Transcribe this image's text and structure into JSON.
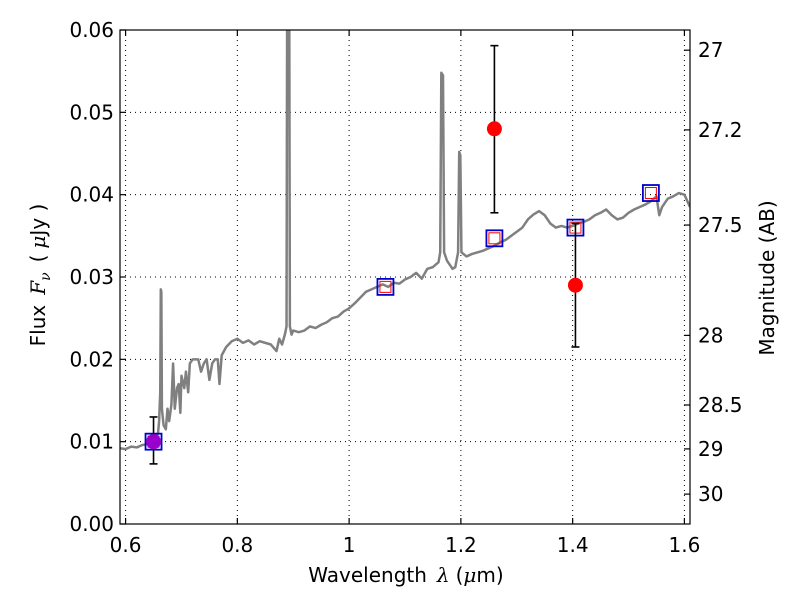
{
  "chart_data": {
    "type": "scatter",
    "xlabel_text": "Wavelength",
    "xlabel_symbol": "λ",
    "xlabel_unit_open": "(",
    "xlabel_unit_mu": "μ",
    "xlabel_unit_rest": "m)",
    "ylabel_text": "Flux",
    "ylabel_symbol": "F",
    "ylabel_sub": "ν",
    "ylabel_unit_open": "(",
    "ylabel_unit_mu": "μ",
    "ylabel_unit_rest": "Jy )",
    "y2label": "Magnitude (AB)",
    "xlim": [
      0.59,
      1.61
    ],
    "ylim": [
      0.0,
      0.06
    ],
    "x_ticks": [
      0.6,
      0.8,
      1.0,
      1.2,
      1.4,
      1.6
    ],
    "x_tick_labels": [
      "0.6",
      "0.8",
      "1",
      "1.2",
      "1.4",
      "1.6"
    ],
    "y_ticks": [
      0.0,
      0.01,
      0.02,
      0.03,
      0.04,
      0.05,
      0.06
    ],
    "y_tick_labels": [
      "0.00",
      "0.01",
      "0.02",
      "0.03",
      "0.04",
      "0.05",
      "0.06"
    ],
    "mag_ticks": [
      27.0,
      27.2,
      27.5,
      28.0,
      28.5,
      29.0,
      30.0
    ],
    "mag_tick_labels": [
      "27",
      "27.2",
      "27.5",
      "28",
      "28.5",
      "29",
      "30"
    ],
    "grid": true,
    "colors": {
      "spectrum": "#808080",
      "observed": "#ff0000",
      "model": "#0000cc",
      "model_inner": "#ff0000",
      "errorbar": "#000000",
      "purple_point": "#9900cc"
    },
    "spectrum": [
      [
        0.59,
        0.0092
      ],
      [
        0.6,
        0.0091
      ],
      [
        0.61,
        0.0094
      ],
      [
        0.62,
        0.0093
      ],
      [
        0.63,
        0.0096
      ],
      [
        0.64,
        0.0097
      ],
      [
        0.645,
        0.0101
      ],
      [
        0.65,
        0.0099
      ],
      [
        0.655,
        0.0105
      ],
      [
        0.658,
        0.011
      ],
      [
        0.66,
        0.0125
      ],
      [
        0.662,
        0.016
      ],
      [
        0.663,
        0.0285
      ],
      [
        0.664,
        0.0282
      ],
      [
        0.665,
        0.014
      ],
      [
        0.668,
        0.012
      ],
      [
        0.672,
        0.0115
      ],
      [
        0.675,
        0.014
      ],
      [
        0.678,
        0.0125
      ],
      [
        0.682,
        0.0145
      ],
      [
        0.685,
        0.0195
      ],
      [
        0.688,
        0.014
      ],
      [
        0.692,
        0.0165
      ],
      [
        0.695,
        0.017
      ],
      [
        0.698,
        0.0135
      ],
      [
        0.7,
        0.018
      ],
      [
        0.705,
        0.0165
      ],
      [
        0.708,
        0.0185
      ],
      [
        0.712,
        0.016
      ],
      [
        0.715,
        0.0195
      ],
      [
        0.72,
        0.02
      ],
      [
        0.73,
        0.02
      ],
      [
        0.735,
        0.0185
      ],
      [
        0.74,
        0.0195
      ],
      [
        0.745,
        0.02
      ],
      [
        0.75,
        0.0175
      ],
      [
        0.755,
        0.0195
      ],
      [
        0.76,
        0.02
      ],
      [
        0.765,
        0.02
      ],
      [
        0.768,
        0.017
      ],
      [
        0.772,
        0.0205
      ],
      [
        0.78,
        0.0215
      ],
      [
        0.79,
        0.0222
      ],
      [
        0.8,
        0.0225
      ],
      [
        0.81,
        0.022
      ],
      [
        0.82,
        0.0223
      ],
      [
        0.83,
        0.0218
      ],
      [
        0.84,
        0.0222
      ],
      [
        0.85,
        0.022
      ],
      [
        0.86,
        0.0218
      ],
      [
        0.87,
        0.021
      ],
      [
        0.875,
        0.0225
      ],
      [
        0.88,
        0.0218
      ],
      [
        0.885,
        0.023
      ],
      [
        0.888,
        0.024
      ],
      [
        0.889,
        0.06
      ],
      [
        0.893,
        0.06
      ],
      [
        0.894,
        0.024
      ],
      [
        0.897,
        0.023
      ],
      [
        0.9,
        0.0235
      ],
      [
        0.91,
        0.0233
      ],
      [
        0.92,
        0.0235
      ],
      [
        0.93,
        0.024
      ],
      [
        0.94,
        0.0238
      ],
      [
        0.95,
        0.0242
      ],
      [
        0.96,
        0.0245
      ],
      [
        0.97,
        0.025
      ],
      [
        0.98,
        0.0252
      ],
      [
        0.99,
        0.0258
      ],
      [
        1.0,
        0.0262
      ],
      [
        1.01,
        0.0268
      ],
      [
        1.02,
        0.0275
      ],
      [
        1.03,
        0.0282
      ],
      [
        1.04,
        0.0285
      ],
      [
        1.05,
        0.0288
      ],
      [
        1.06,
        0.0291
      ],
      [
        1.07,
        0.0288
      ],
      [
        1.08,
        0.0293
      ],
      [
        1.09,
        0.0292
      ],
      [
        1.1,
        0.0297
      ],
      [
        1.11,
        0.03
      ],
      [
        1.12,
        0.0305
      ],
      [
        1.13,
        0.0298
      ],
      [
        1.14,
        0.031
      ],
      [
        1.15,
        0.0312
      ],
      [
        1.16,
        0.0318
      ],
      [
        1.163,
        0.033
      ],
      [
        1.165,
        0.0548
      ],
      [
        1.168,
        0.0545
      ],
      [
        1.17,
        0.033
      ],
      [
        1.175,
        0.032
      ],
      [
        1.18,
        0.0315
      ],
      [
        1.185,
        0.031
      ],
      [
        1.19,
        0.0312
      ],
      [
        1.195,
        0.033
      ],
      [
        1.197,
        0.0452
      ],
      [
        1.199,
        0.0448
      ],
      [
        1.201,
        0.033
      ],
      [
        1.21,
        0.0325
      ],
      [
        1.22,
        0.0328
      ],
      [
        1.23,
        0.033
      ],
      [
        1.24,
        0.0332
      ],
      [
        1.25,
        0.0335
      ],
      [
        1.26,
        0.0338
      ],
      [
        1.27,
        0.0342
      ],
      [
        1.28,
        0.0345
      ],
      [
        1.29,
        0.035
      ],
      [
        1.3,
        0.0355
      ],
      [
        1.31,
        0.036
      ],
      [
        1.32,
        0.037
      ],
      [
        1.33,
        0.0376
      ],
      [
        1.34,
        0.038
      ],
      [
        1.35,
        0.0375
      ],
      [
        1.36,
        0.0365
      ],
      [
        1.37,
        0.036
      ],
      [
        1.38,
        0.0362
      ],
      [
        1.39,
        0.036
      ],
      [
        1.4,
        0.0362
      ],
      [
        1.41,
        0.0365
      ],
      [
        1.42,
        0.0367
      ],
      [
        1.43,
        0.037
      ],
      [
        1.44,
        0.0375
      ],
      [
        1.45,
        0.0378
      ],
      [
        1.46,
        0.0382
      ],
      [
        1.47,
        0.0375
      ],
      [
        1.48,
        0.037
      ],
      [
        1.49,
        0.0372
      ],
      [
        1.5,
        0.0378
      ],
      [
        1.51,
        0.0382
      ],
      [
        1.52,
        0.0385
      ],
      [
        1.53,
        0.0388
      ],
      [
        1.54,
        0.0392
      ],
      [
        1.55,
        0.0398
      ],
      [
        1.555,
        0.0375
      ],
      [
        1.56,
        0.0385
      ],
      [
        1.57,
        0.0395
      ],
      [
        1.58,
        0.0398
      ],
      [
        1.59,
        0.0402
      ],
      [
        1.6,
        0.04
      ],
      [
        1.61,
        0.0385
      ]
    ],
    "observed_points": [
      {
        "x": 0.65,
        "y": 0.01,
        "yerr_low": 0.0073,
        "yerr_high": 0.013
      },
      {
        "x": 1.26,
        "y": 0.048,
        "yerr_low": 0.0378,
        "yerr_high": 0.0581
      },
      {
        "x": 1.405,
        "y": 0.029,
        "yerr_low": 0.0215,
        "yerr_high": 0.0365
      }
    ],
    "model_points": [
      {
        "x": 0.65,
        "y": 0.01
      },
      {
        "x": 1.065,
        "y": 0.0288
      },
      {
        "x": 1.26,
        "y": 0.0347
      },
      {
        "x": 1.405,
        "y": 0.036
      },
      {
        "x": 1.54,
        "y": 0.0402
      }
    ]
  }
}
